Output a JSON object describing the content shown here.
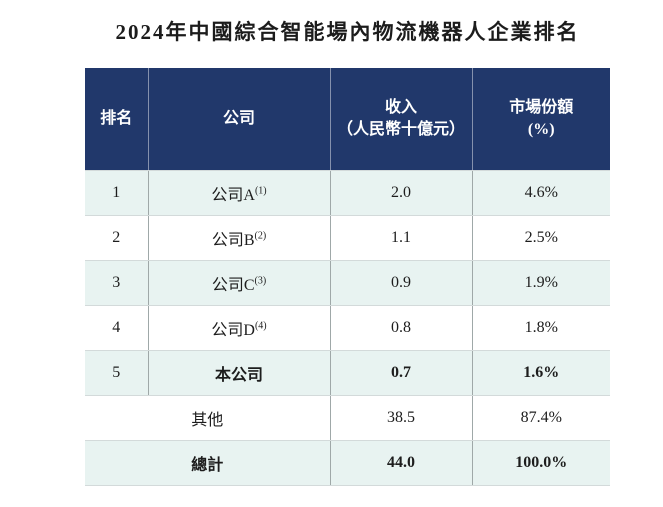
{
  "page": {
    "title": "2024年中國綜合智能場內物流機器人企業排名"
  },
  "colors": {
    "header_bg": "#21386B",
    "header_text": "#FFFFFF",
    "row_tint": "#E8F3F1",
    "body_text": "#1D1D1D"
  },
  "table": {
    "columns": [
      {
        "label": "排名"
      },
      {
        "label": "公司"
      },
      {
        "line1": "收入",
        "line2": "（人民幣十億元）"
      },
      {
        "line1": "市場份額",
        "line2": "(%)"
      }
    ],
    "rows": [
      {
        "rank": "1",
        "company": "公司A",
        "sup": "(1)",
        "revenue": "2.0",
        "share": "4.6%"
      },
      {
        "rank": "2",
        "company": "公司B",
        "sup": "(2)",
        "revenue": "1.1",
        "share": "2.5%"
      },
      {
        "rank": "3",
        "company": "公司C",
        "sup": "(3)",
        "revenue": "0.9",
        "share": "1.9%"
      },
      {
        "rank": "4",
        "company": "公司D",
        "sup": "(4)",
        "revenue": "0.8",
        "share": "1.8%"
      },
      {
        "rank": "5",
        "company": "本公司",
        "revenue": "0.7",
        "share": "1.6%"
      },
      {
        "company": "其他",
        "revenue": "38.5",
        "share": "87.4%"
      },
      {
        "company": "總計",
        "revenue": "44.0",
        "share": "100.0%"
      }
    ]
  }
}
